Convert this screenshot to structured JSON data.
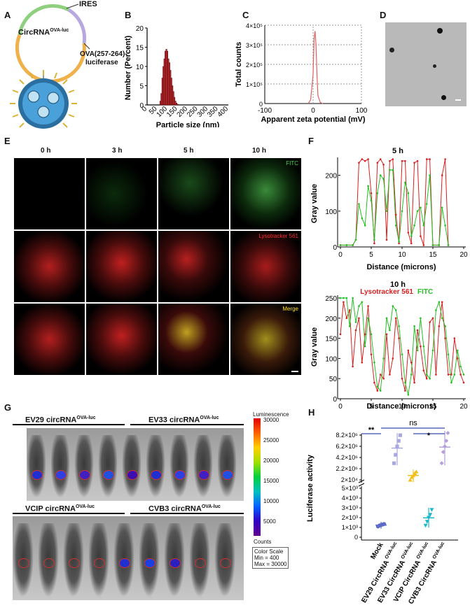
{
  "panels": {
    "A": "A",
    "B": "B",
    "C": "C",
    "D": "D",
    "E": "E",
    "F": "F",
    "G": "G",
    "H": "H"
  },
  "panelA": {
    "ires": "IRES",
    "circ": "CircRNA",
    "circ_sup": "OVA-luc",
    "ova_line1": "OVA(257-264)-",
    "ova_line2": "luciferase"
  },
  "panelB": {
    "ylabel": "Number (Percent)",
    "xlabel": "Particle size (nm)",
    "yticks": [
      "0",
      "5",
      "10",
      "15",
      "20"
    ],
    "xticks": [
      "0",
      "50",
      "100",
      "150",
      "200",
      "250",
      "300",
      "350",
      "400"
    ]
  },
  "panelC": {
    "ylabel": "Total counts",
    "xlabel": "Apparent zeta potential (mV)",
    "yticks": [
      "0",
      "1×10⁵",
      "2×10⁵",
      "3×10⁵",
      "4×10⁵"
    ],
    "xticks": [
      "-100",
      "0",
      "100"
    ]
  },
  "panelE": {
    "times": [
      "0 h",
      "3 h",
      "5 h",
      "10 h"
    ],
    "rows": [
      "FITC",
      "Lysotracker 561",
      "Merge"
    ]
  },
  "panelF": {
    "top_title": "5 h",
    "bottom_title": "10 h",
    "ylabel": "Gray value",
    "xlabel": "Distance (microns)",
    "legend_red": "Lysotracker 561",
    "legend_green": "FITC",
    "top_yticks": [
      "0",
      "100",
      "200"
    ],
    "bottom_yticks": [
      "0",
      "50",
      "100",
      "150",
      "200",
      "250"
    ],
    "xticks": [
      "0",
      "5",
      "10",
      "15",
      "20"
    ]
  },
  "panelG": {
    "groups": [
      "EV29 circRNA",
      "EV33 circRNA",
      "VCIP circRNA",
      "CVB3 circRNA"
    ],
    "sup": "OVA-luc",
    "scale_title": "Luminescence",
    "scale_ticks": [
      "30000",
      "25000",
      "20000",
      "15000",
      "10000",
      "5000"
    ],
    "counts": "Counts",
    "color_scale": "Color Scale",
    "min": "Min = 400",
    "max": "Max = 30000"
  },
  "panelH": {
    "ylabel": "Luciferase activity",
    "yticks_top": [
      "2×10⁴",
      "2.2×10⁶",
      "4.2×10⁶",
      "6.2×10⁶",
      "8.2×10⁶"
    ],
    "yticks_bottom": [
      "0",
      "1×10³",
      "2×10³",
      "3×10³",
      "4×10³",
      "5×10³"
    ],
    "categories": [
      "Mock",
      "EV29 CircRNA",
      "EV33 CircRNA",
      "VCIP CircRNA",
      "CVB3 CircRNA"
    ],
    "cat_sup": "OVA-luc",
    "sig1": "**",
    "sig2": "ns",
    "sig3": "*"
  },
  "chart_data": [
    {
      "type": "bar",
      "panel": "B",
      "xlabel": "Particle size (nm)",
      "ylabel": "Number (Percent)",
      "ylim": [
        0,
        20
      ],
      "x": [
        65,
        70,
        75,
        80,
        85,
        90,
        95,
        100,
        105,
        110,
        115,
        120,
        125,
        130,
        135,
        140,
        145,
        150
      ],
      "values": [
        1,
        3,
        7,
        10,
        12,
        14,
        14.5,
        14,
        12,
        11,
        9,
        7,
        5,
        3.5,
        2,
        1,
        0.5,
        0.2
      ],
      "colors": {
        "bar": "#c0282e"
      }
    },
    {
      "type": "line",
      "panel": "C",
      "xlabel": "Apparent zeta potential (mV)",
      "ylabel": "Total counts",
      "xlim": [
        -100,
        100
      ],
      "ylim": [
        0,
        400000
      ],
      "x": [
        -10,
        -5,
        0,
        2,
        4,
        6,
        8,
        10,
        15,
        20
      ],
      "values": [
        0,
        20000,
        150000,
        330000,
        370000,
        300000,
        150000,
        40000,
        5000,
        0
      ],
      "colors": {
        "line": "#e06060"
      }
    },
    {
      "type": "line",
      "panel": "F-5h",
      "xlabel": "Distance (microns)",
      "ylabel": "Gray value",
      "ylim": [
        0,
        250
      ],
      "series": [
        {
          "name": "Lysotracker 561",
          "x": [
            0,
            1,
            2,
            2.5,
            3,
            3.5,
            4,
            4.5,
            5,
            5.5,
            6,
            6.5,
            7,
            7.5,
            8,
            8.5,
            9,
            9.5,
            10,
            10.5,
            11,
            11.5,
            12,
            12.5,
            13,
            13.5,
            14,
            14.5,
            15,
            16,
            16.5,
            17,
            17.5
          ],
          "values": [
            5,
            5,
            5,
            20,
            235,
            245,
            240,
            245,
            150,
            10,
            235,
            245,
            230,
            20,
            240,
            245,
            90,
            10,
            240,
            240,
            40,
            10,
            235,
            240,
            30,
            5,
            245,
            245,
            5,
            5,
            200,
            245,
            5
          ]
        },
        {
          "name": "FITC",
          "x": [
            0,
            1,
            2,
            2.5,
            3,
            3.5,
            4,
            4.5,
            5,
            5.5,
            6,
            6.5,
            7,
            7.5,
            8,
            8.5,
            9,
            9.5,
            10,
            10.5,
            11,
            11.5,
            12,
            12.5,
            13,
            13.5,
            14,
            14.5,
            15,
            16,
            16.5,
            17,
            17.5
          ],
          "values": [
            5,
            5,
            5,
            20,
            120,
            80,
            60,
            170,
            130,
            20,
            150,
            200,
            190,
            100,
            215,
            215,
            60,
            15,
            100,
            180,
            150,
            30,
            60,
            100,
            110,
            60,
            120,
            200,
            5,
            5,
            110,
            60,
            5
          ]
        }
      ]
    },
    {
      "type": "line",
      "panel": "F-10h",
      "xlabel": "Distance (microns)",
      "ylabel": "Gray value",
      "ylim": [
        0,
        250
      ],
      "series": [
        {
          "name": "Lysotracker 561",
          "x": [
            0,
            0.5,
            1,
            1.5,
            2,
            2.5,
            3,
            3.5,
            4,
            4.5,
            5,
            5.5,
            6,
            6.5,
            7,
            7.5,
            8,
            8.5,
            9,
            9.5,
            10,
            10.5,
            11,
            11.5,
            12,
            12.5,
            13,
            13.5,
            14,
            14.5,
            15,
            15.5,
            16,
            16.5,
            17,
            17.5,
            18,
            18.5,
            19,
            19.5,
            20
          ],
          "values": [
            160,
            240,
            200,
            220,
            80,
            170,
            200,
            90,
            160,
            230,
            110,
            40,
            20,
            60,
            50,
            160,
            60,
            100,
            200,
            150,
            50,
            20,
            120,
            90,
            40,
            170,
            130,
            70,
            50,
            190,
            200,
            60,
            180,
            240,
            150,
            60,
            60,
            150,
            100,
            60,
            40
          ]
        },
        {
          "name": "FITC",
          "x": [
            0,
            0.5,
            1,
            1.5,
            2,
            2.5,
            3,
            3.5,
            4,
            4.5,
            5,
            5.5,
            6,
            6.5,
            7,
            7.5,
            8,
            8.5,
            9,
            9.5,
            10,
            10.5,
            11,
            11.5,
            12,
            12.5,
            13,
            13.5,
            14,
            14.5,
            15,
            15.5,
            16,
            16.5,
            17,
            17.5,
            18,
            18.5,
            19,
            19.5,
            20
          ],
          "values": [
            250,
            250,
            250,
            180,
            250,
            190,
            230,
            240,
            130,
            200,
            160,
            90,
            30,
            20,
            100,
            200,
            170,
            230,
            220,
            180,
            110,
            40,
            10,
            60,
            180,
            120,
            200,
            130,
            60,
            50,
            120,
            220,
            240,
            200,
            180,
            110,
            40,
            60,
            120,
            80,
            60
          ]
        }
      ]
    },
    {
      "type": "scatter",
      "panel": "H",
      "ylabel": "Luciferase activity",
      "categories": [
        "Mock",
        "EV29 CircRNA OVA-luc",
        "EV33 CircRNA OVA-luc",
        "VCIP CircRNA OVA-luc",
        "CVB3 CircRNA OVA-luc"
      ],
      "series": [
        {
          "name": "Mock",
          "values": [
            1100,
            1200,
            1250,
            1300,
            1350
          ]
        },
        {
          "name": "EV29",
          "values": [
            3000000,
            4500000,
            6000000,
            7000000,
            8000000
          ]
        },
        {
          "name": "EV33",
          "values": [
            22000,
            500000,
            800000,
            1200000,
            1500000
          ]
        },
        {
          "name": "VCIP",
          "values": [
            1200,
            1600,
            2000,
            2300,
            2800
          ]
        },
        {
          "name": "CVB3",
          "values": [
            3000000,
            5000000,
            6000000,
            7000000,
            8400000
          ]
        }
      ],
      "colors": [
        "#5d6bc9",
        "#a9a7e0",
        "#f2c01d",
        "#1cb7c9",
        "#b5a0dc"
      ]
    }
  ]
}
